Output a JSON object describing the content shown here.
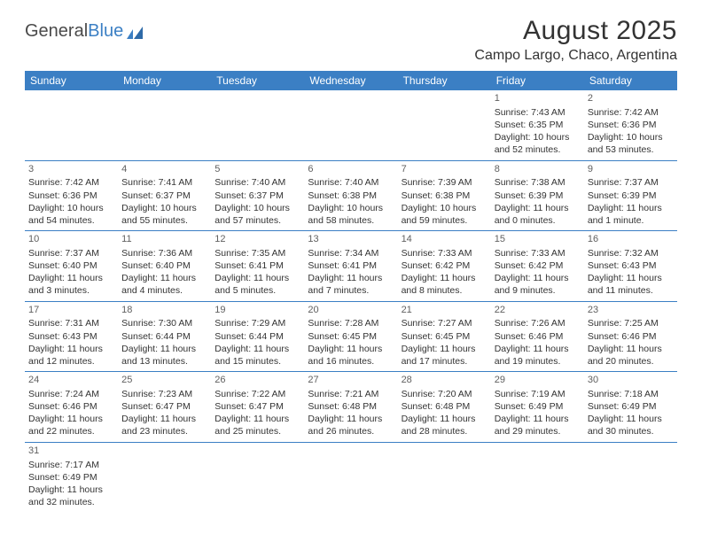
{
  "logo": {
    "text1": "General",
    "text2": "Blue"
  },
  "title": "August 2025",
  "location": "Campo Largo, Chaco, Argentina",
  "colors": {
    "header_bg": "#3b7fc4",
    "header_fg": "#ffffff",
    "border": "#3b7fc4",
    "text": "#333333",
    "daynum": "#606060",
    "page_bg": "#ffffff"
  },
  "typography": {
    "title_fontsize": 30,
    "location_fontsize": 16,
    "header_fontsize": 12,
    "cell_fontsize": 10.5,
    "daynum_fontsize": 11
  },
  "days_of_week": [
    "Sunday",
    "Monday",
    "Tuesday",
    "Wednesday",
    "Thursday",
    "Friday",
    "Saturday"
  ],
  "weeks": [
    [
      null,
      null,
      null,
      null,
      null,
      {
        "n": "1",
        "sr": "7:43 AM",
        "ss": "6:35 PM",
        "dl": "10 hours and 52 minutes."
      },
      {
        "n": "2",
        "sr": "7:42 AM",
        "ss": "6:36 PM",
        "dl": "10 hours and 53 minutes."
      }
    ],
    [
      {
        "n": "3",
        "sr": "7:42 AM",
        "ss": "6:36 PM",
        "dl": "10 hours and 54 minutes."
      },
      {
        "n": "4",
        "sr": "7:41 AM",
        "ss": "6:37 PM",
        "dl": "10 hours and 55 minutes."
      },
      {
        "n": "5",
        "sr": "7:40 AM",
        "ss": "6:37 PM",
        "dl": "10 hours and 57 minutes."
      },
      {
        "n": "6",
        "sr": "7:40 AM",
        "ss": "6:38 PM",
        "dl": "10 hours and 58 minutes."
      },
      {
        "n": "7",
        "sr": "7:39 AM",
        "ss": "6:38 PM",
        "dl": "10 hours and 59 minutes."
      },
      {
        "n": "8",
        "sr": "7:38 AM",
        "ss": "6:39 PM",
        "dl": "11 hours and 0 minutes."
      },
      {
        "n": "9",
        "sr": "7:37 AM",
        "ss": "6:39 PM",
        "dl": "11 hours and 1 minute."
      }
    ],
    [
      {
        "n": "10",
        "sr": "7:37 AM",
        "ss": "6:40 PM",
        "dl": "11 hours and 3 minutes."
      },
      {
        "n": "11",
        "sr": "7:36 AM",
        "ss": "6:40 PM",
        "dl": "11 hours and 4 minutes."
      },
      {
        "n": "12",
        "sr": "7:35 AM",
        "ss": "6:41 PM",
        "dl": "11 hours and 5 minutes."
      },
      {
        "n": "13",
        "sr": "7:34 AM",
        "ss": "6:41 PM",
        "dl": "11 hours and 7 minutes."
      },
      {
        "n": "14",
        "sr": "7:33 AM",
        "ss": "6:42 PM",
        "dl": "11 hours and 8 minutes."
      },
      {
        "n": "15",
        "sr": "7:33 AM",
        "ss": "6:42 PM",
        "dl": "11 hours and 9 minutes."
      },
      {
        "n": "16",
        "sr": "7:32 AM",
        "ss": "6:43 PM",
        "dl": "11 hours and 11 minutes."
      }
    ],
    [
      {
        "n": "17",
        "sr": "7:31 AM",
        "ss": "6:43 PM",
        "dl": "11 hours and 12 minutes."
      },
      {
        "n": "18",
        "sr": "7:30 AM",
        "ss": "6:44 PM",
        "dl": "11 hours and 13 minutes."
      },
      {
        "n": "19",
        "sr": "7:29 AM",
        "ss": "6:44 PM",
        "dl": "11 hours and 15 minutes."
      },
      {
        "n": "20",
        "sr": "7:28 AM",
        "ss": "6:45 PM",
        "dl": "11 hours and 16 minutes."
      },
      {
        "n": "21",
        "sr": "7:27 AM",
        "ss": "6:45 PM",
        "dl": "11 hours and 17 minutes."
      },
      {
        "n": "22",
        "sr": "7:26 AM",
        "ss": "6:46 PM",
        "dl": "11 hours and 19 minutes."
      },
      {
        "n": "23",
        "sr": "7:25 AM",
        "ss": "6:46 PM",
        "dl": "11 hours and 20 minutes."
      }
    ],
    [
      {
        "n": "24",
        "sr": "7:24 AM",
        "ss": "6:46 PM",
        "dl": "11 hours and 22 minutes."
      },
      {
        "n": "25",
        "sr": "7:23 AM",
        "ss": "6:47 PM",
        "dl": "11 hours and 23 minutes."
      },
      {
        "n": "26",
        "sr": "7:22 AM",
        "ss": "6:47 PM",
        "dl": "11 hours and 25 minutes."
      },
      {
        "n": "27",
        "sr": "7:21 AM",
        "ss": "6:48 PM",
        "dl": "11 hours and 26 minutes."
      },
      {
        "n": "28",
        "sr": "7:20 AM",
        "ss": "6:48 PM",
        "dl": "11 hours and 28 minutes."
      },
      {
        "n": "29",
        "sr": "7:19 AM",
        "ss": "6:49 PM",
        "dl": "11 hours and 29 minutes."
      },
      {
        "n": "30",
        "sr": "7:18 AM",
        "ss": "6:49 PM",
        "dl": "11 hours and 30 minutes."
      }
    ],
    [
      {
        "n": "31",
        "sr": "7:17 AM",
        "ss": "6:49 PM",
        "dl": "11 hours and 32 minutes."
      },
      null,
      null,
      null,
      null,
      null,
      null
    ]
  ],
  "labels": {
    "sunrise": "Sunrise: ",
    "sunset": "Sunset: ",
    "daylight": "Daylight: "
  }
}
